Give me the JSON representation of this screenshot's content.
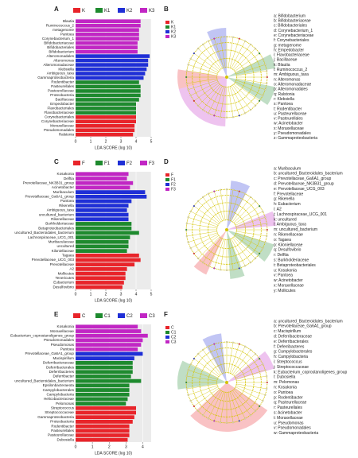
{
  "chart_data": [
    {
      "type": "bar",
      "orientation": "horizontal",
      "panel": "A",
      "xlabel": "LDA SCORE (log 10)",
      "xlim": [
        0,
        5
      ],
      "xticks": [
        0,
        1,
        2,
        3,
        4,
        5
      ],
      "series": [
        {
          "name": "K",
          "color": "#e8242a",
          "categories": [
            "Corynebacteriales",
            "Corynebacteriaceae",
            "Moraxellaceae",
            "Pseudomonadales",
            "Ralstonia"
          ],
          "values": [
            4.0,
            4.0,
            3.9,
            3.9,
            3.8
          ]
        },
        {
          "name": "K1",
          "color": "#1e8a2e",
          "categories": [
            "Rodentibacter",
            "Pasteurellales",
            "Pasteurellaceae",
            "Proteobacteria",
            "Bacillaceae",
            "Empedobacter",
            "Flavobacteriales",
            "Flavobacteriaceae"
          ],
          "values": [
            4.2,
            4.3,
            4.3,
            4.3,
            4.2,
            4.0,
            4.0,
            4.0
          ]
        },
        {
          "name": "K2",
          "color": "#1f2fd6",
          "categories": [
            "Alteromonadales",
            "Alteromonas",
            "Alteromonadaceae",
            "Klebsiella",
            "Ambiguous_taxa",
            "Gammaproteobacteria"
          ],
          "values": [
            4.9,
            4.8,
            4.8,
            4.7,
            4.6,
            4.5
          ]
        },
        {
          "name": "K3",
          "color": "#c126c4",
          "categories": [
            "Blautia",
            "Ruminococcus_2",
            "metagenome",
            "Pantoea",
            "Corynebacterium_1",
            "Bifidobacteriaceae",
            "Bifidobacteriales",
            "Bifidobacterium"
          ],
          "values": [
            4.3,
            4.3,
            4.2,
            4.2,
            4.2,
            4.1,
            4.1,
            4.1
          ]
        }
      ]
    },
    {
      "type": "bar",
      "orientation": "horizontal",
      "panel": "C",
      "xlabel": "LDA SCORE (log 10)",
      "xlim": [
        0,
        5
      ],
      "xticks": [
        0,
        1,
        2,
        3,
        4,
        5
      ],
      "series": [
        {
          "name": "F",
          "color": "#e8242a",
          "categories": [
            "Tagaea",
            "Prevotellaceae_UCG_003",
            "Prevotellaceae",
            "A2",
            "Mollicutes",
            "Tenericutes",
            "Eubacterium",
            "Desulfovibrio"
          ],
          "values": [
            4.2,
            4.3,
            3.9,
            3.4,
            3.3,
            3.3,
            3.2,
            3.1
          ]
        },
        {
          "name": "F1",
          "color": "#1e8a2e",
          "categories": [
            "Burkholderiaceae",
            "Betaproteobacteriales",
            "uncultured_Bacteroidales_bacterium",
            "Lachnospiraceae_UCG_001",
            "Muribaculaceae",
            "uncultured",
            "Kiloniellaceae"
          ],
          "values": [
            3.7,
            3.7,
            4.2,
            3.6,
            3.5,
            3.5,
            3.4
          ]
        },
        {
          "name": "F2",
          "color": "#1f2fd6",
          "categories": [
            "Muribaculum",
            "Prevotellaceae_Ga6A1_group",
            "Pantoea",
            "Rikenella",
            "Ambiguous_taxa",
            "uncultured_bacterium",
            "Rikenellaceae"
          ],
          "values": [
            4.6,
            4.7,
            3.7,
            3.5,
            3.4,
            3.5,
            3.5
          ]
        },
        {
          "name": "F3",
          "color": "#c126c4",
          "categories": [
            "Kosakonia",
            "Delftia",
            "Prevotellaceae_NK3B31_group",
            "Acinetobacter"
          ],
          "values": [
            3.5,
            3.4,
            3.8,
            3.6
          ]
        }
      ]
    },
    {
      "type": "bar",
      "orientation": "horizontal",
      "panel": "E",
      "xlabel": "LDA SCORE (log 10)",
      "xlim": [
        0,
        4.5
      ],
      "xticks": [
        0,
        1,
        2,
        3,
        4
      ],
      "series": [
        {
          "name": "C",
          "color": "#e8242a",
          "categories": [
            "Streptococcus",
            "Streptococcaceae",
            "Gammaproteobacteria",
            "Proteobacteria",
            "Rodentibacter",
            "Pasteurellales",
            "Pasteurellaceae",
            "Dubosiella"
          ],
          "values": [
            3.6,
            3.6,
            3.5,
            3.4,
            3.2,
            3.2,
            3.2,
            3.1
          ]
        },
        {
          "name": "C1",
          "color": "#1e8a2e",
          "categories": [
            "Deferribacteraceae",
            "Deferribacterales",
            "Deferribacteres",
            "Deferribacter",
            "uncultured_Bacteroidales_bacterium",
            "Epsilonbacteraeota",
            "Campylobacterales",
            "Campylobacteria",
            "Helicobacteraceae",
            "Pelomonas"
          ],
          "values": [
            3.4,
            3.4,
            3.4,
            3.3,
            3.9,
            3.2,
            3.2,
            3.2,
            3.1,
            3.0
          ]
        },
        {
          "name": "C2",
          "color": "#1f2fd6",
          "categories": [
            "Prevotellaceae_Ga6A1_group",
            "Macispirillum"
          ],
          "values": [
            4.0,
            3.5
          ]
        },
        {
          "name": "C3",
          "color": "#c126c4",
          "categories": [
            "Kosakonia",
            "Moraxellaceae",
            "Eubacterium_coprostanoligenes_group",
            "Pseudomonadales",
            "Pseudomonas",
            "Pantoea"
          ],
          "values": [
            3.7,
            3.9,
            4.3,
            4.0,
            3.9,
            3.7
          ]
        }
      ]
    }
  ],
  "cladograms": [
    {
      "panel": "B",
      "legend": [
        {
          "name": "K",
          "color": "#e8242a"
        },
        {
          "name": "K1",
          "color": "#1e8a2e"
        },
        {
          "name": "K2",
          "color": "#1f2fd6"
        },
        {
          "name": "K3",
          "color": "#c126c4"
        }
      ],
      "labels": [
        "a: Bifidobacterium",
        "b: Bifidobacteriaceae",
        "c: Bifidobacteriales",
        "d: Corynebacterium_1",
        "e: Corynebacteriaceae",
        "f: Corynebacteriales",
        "g: metagenome",
        "h: Empedobacter",
        "i: Flavobacteriaceae",
        "j: Bacillaceae",
        "k: Blautia",
        "l: Ruminococcus_2",
        "m: Ambiguous_taxa",
        "n: Alteromonas",
        "o: Alteromonadaceae",
        "p: Alteromonadales",
        "q: Ralstonia",
        "r: Klebsiella",
        "s: Pantoea",
        "t: Rodentibacter",
        "u: Pasteurellaceae",
        "v: Pasteurellales",
        "w: Acinetobacter",
        "x: Moraxellaceae",
        "y: Pseudomonadales",
        "z: Gammaproteobacteria"
      ]
    },
    {
      "panel": "D",
      "legend": [
        {
          "name": "F",
          "color": "#e8242a"
        },
        {
          "name": "F1",
          "color": "#1e8a2e"
        },
        {
          "name": "F2",
          "color": "#1f2fd6"
        },
        {
          "name": "F3",
          "color": "#c126c4"
        }
      ],
      "labels": [
        "a: Muribaculum",
        "b: uncultured_Bacteroidales_bacterium",
        "c: Prevotellaceae_Ga6A1_group",
        "d: Prevotellaceae_NK3B31_group",
        "e: Prevotellaceae_UCG_003",
        "f: Prevotellaceae",
        "g: Rikenella",
        "h: Eubacterium",
        "i: A2",
        "j: Lachnospiraceae_UCG_001",
        "k: uncultured",
        "l: Ambiguous_taxa",
        "m: uncultured_bacterium",
        "n: Rikenellaceae",
        "o: Tagaea",
        "p: Kiloniellaceae",
        "q: Desulfovibrio",
        "r: Delftia",
        "s: Burkholderiaceae",
        "t: Betaproteobacteriales",
        "u: Kosakonia",
        "v: Pantoea",
        "w: Acinetobacter",
        "x: Moraxellaceae",
        "y: Mollicutes"
      ]
    },
    {
      "panel": "F",
      "legend": [
        {
          "name": "C",
          "color": "#e8242a"
        },
        {
          "name": "C1",
          "color": "#1e8a2e"
        },
        {
          "name": "C2",
          "color": "#1f2fd6"
        },
        {
          "name": "C3",
          "color": "#c126c4"
        }
      ],
      "labels": [
        "a: uncultured_Bacteroidales_bacterium",
        "b: Prevotellaceae_Ga6A1_group",
        "c: Macispirillum",
        "d: Deferribacteraceae",
        "e: Deferribacterales",
        "f: Deferribacteres",
        "g: Campylobacterales",
        "h: Campylobacteria",
        "i: Streptococcus",
        "j: Streptococcaceae",
        "k: Eubacterium_coprostanoligenes_group",
        "l: Dubosiella",
        "m: Pelomonas",
        "n: Kosakonia",
        "o: Pantoea",
        "p: Rodentibacter",
        "q: Pasteurellaceae",
        "r: Pasteurellales",
        "s: Acinetobacter",
        "t: Moraxellaceae",
        "u: Pseudomonas",
        "v: Pseudomonadales",
        "w: Gammaproteobacteria"
      ]
    }
  ]
}
